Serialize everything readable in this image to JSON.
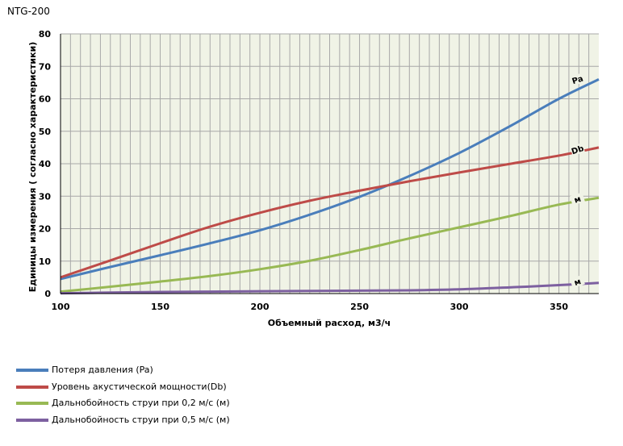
{
  "page": {
    "title": "NTG-200"
  },
  "chart_data": {
    "type": "line",
    "title": "",
    "xlabel": "Объемный расход, м3/ч",
    "ylabel": "Единицы измерения ( согласно характеристики)",
    "xlim": [
      100,
      370
    ],
    "ylim": [
      0,
      80
    ],
    "x_ticks": [
      "100",
      "150",
      "200",
      "250",
      "300",
      "350"
    ],
    "y_ticks": [
      "0",
      "10",
      "20",
      "30",
      "40",
      "50",
      "60",
      "70",
      "80"
    ],
    "grid": true,
    "plot_background": "#f0f3e6",
    "grid_color": "#a8a8a8",
    "x": [
      100,
      125,
      150,
      175,
      200,
      225,
      250,
      275,
      300,
      325,
      350,
      370
    ],
    "series": [
      {
        "name": "Потеря давления (Pa)",
        "color": "#4a7ebb",
        "end_label": "Pa",
        "values": [
          4.5,
          8.2,
          11.8,
          15.5,
          19.5,
          24.3,
          29.8,
          36.2,
          43.3,
          51.4,
          60.0,
          66.0
        ]
      },
      {
        "name": "Уровень акустической мощности(Db)",
        "color": "#be4b48",
        "end_label": "Db",
        "values": [
          5.0,
          10.2,
          15.5,
          20.6,
          24.9,
          28.6,
          31.7,
          34.6,
          37.3,
          39.9,
          42.5,
          45.0
        ]
      },
      {
        "name": "Дальнобойность струи при 0,2 м/с (м)",
        "color": "#98b954",
        "end_label": "м",
        "values": [
          0.6,
          2.1,
          3.7,
          5.4,
          7.5,
          10.1,
          13.4,
          17.0,
          20.4,
          23.8,
          27.4,
          29.5
        ]
      },
      {
        "name": "Дальнобойность струи при 0,5 м/с (м)",
        "color": "#7d60a0",
        "end_label": "м",
        "values": [
          0.1,
          0.3,
          0.5,
          0.6,
          0.7,
          0.8,
          0.9,
          1.0,
          1.3,
          1.9,
          2.6,
          3.3
        ]
      }
    ],
    "legend_position": "bottom-left"
  }
}
